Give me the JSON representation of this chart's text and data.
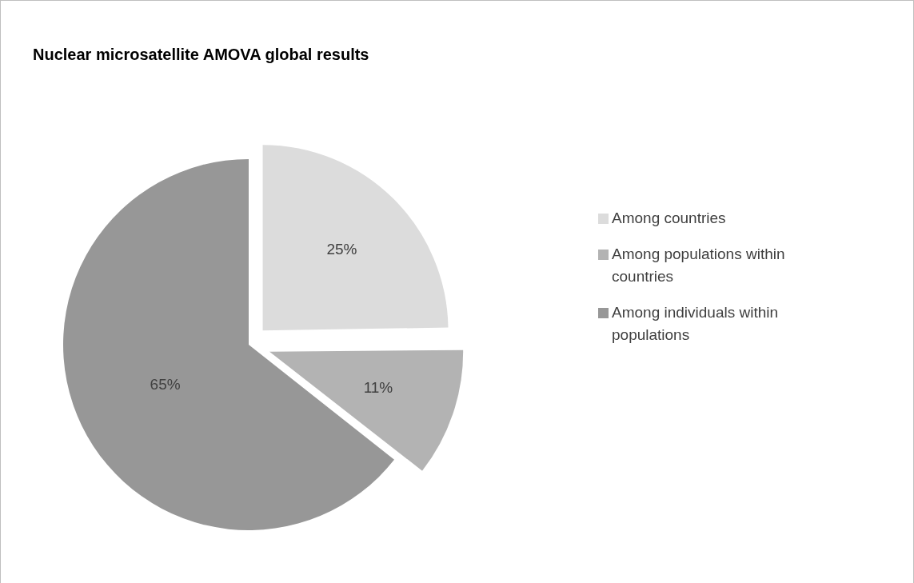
{
  "chart_data": {
    "type": "pie",
    "title": "Nuclear microsatellite AMOVA global results",
    "categories": [
      "Among countries",
      "Among populations within countries",
      "Among individuals within populations"
    ],
    "values": [
      25,
      11,
      65
    ],
    "colors": [
      "#dcdcdc",
      "#b3b3b3",
      "#979797"
    ],
    "value_labels": [
      "25%",
      "11%",
      "65%"
    ],
    "legend": "right"
  }
}
